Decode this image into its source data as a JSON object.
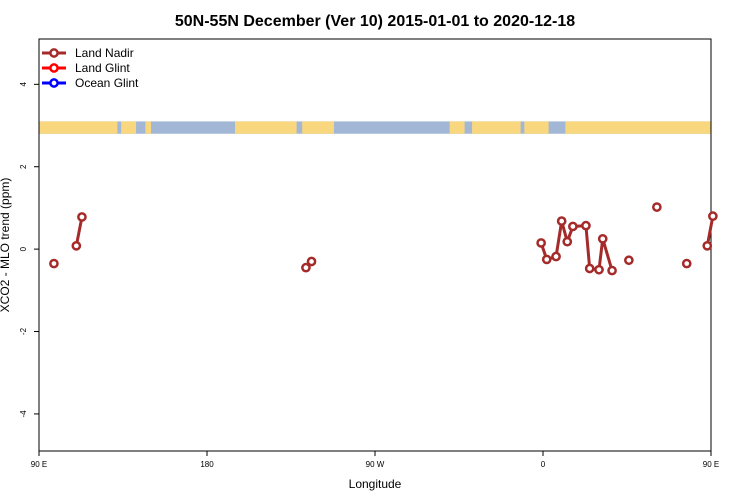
{
  "chart_data": {
    "type": "line",
    "title": "50N-55N December (Ver 10)   2015-01-01 to 2020-12-18",
    "xlabel": "Longitude",
    "ylabel": "XCO2 - MLO trend (ppm)",
    "xlim": [
      90,
      450
    ],
    "ylim": [
      -4.9,
      5.1
    ],
    "x_ticks": [
      {
        "value": 90,
        "label": "90 E"
      },
      {
        "value": 180,
        "label": "180"
      },
      {
        "value": 270,
        "label": "90 W"
      },
      {
        "value": 360,
        "label": "0"
      },
      {
        "value": 450,
        "label": "90 E"
      }
    ],
    "y_ticks": [
      {
        "value": -4,
        "label": "-4"
      },
      {
        "value": -2,
        "label": "-2"
      },
      {
        "value": 0,
        "label": "0"
      },
      {
        "value": 2,
        "label": "2"
      },
      {
        "value": 4,
        "label": "4"
      }
    ],
    "grid": false,
    "legend_position": "top-left",
    "legend": [
      {
        "label": "Land Nadir",
        "color": "#a52a2a"
      },
      {
        "label": "Land Glint",
        "color": "#ff0000"
      },
      {
        "label": "Ocean Glint",
        "color": "#0000ff"
      }
    ],
    "land_ocean_strip": {
      "land_color": "#f9d77e",
      "ocean_color": "#a2b6d6",
      "land_ranges": [
        [
          90,
          132
        ],
        [
          134,
          142
        ],
        [
          147,
          150
        ],
        [
          195,
          228
        ],
        [
          231,
          248
        ],
        [
          310,
          318
        ],
        [
          322,
          348
        ],
        [
          350,
          363
        ],
        [
          372,
          450
        ],
        [
          450,
          452
        ]
      ]
    },
    "series": [
      {
        "name": "Land Nadir",
        "color": "#a52a2a",
        "segments": [
          [
            {
              "x": 98,
              "y": -0.35
            }
          ],
          [
            {
              "x": 110,
              "y": 0.08
            },
            {
              "x": 113,
              "y": 0.78
            }
          ],
          [
            {
              "x": 233,
              "y": -0.45
            },
            {
              "x": 236,
              "y": -0.3
            }
          ],
          [
            {
              "x": 359,
              "y": 0.15
            },
            {
              "x": 362,
              "y": -0.25
            },
            {
              "x": 367,
              "y": -0.18
            },
            {
              "x": 370,
              "y": 0.68
            },
            {
              "x": 373,
              "y": 0.18
            },
            {
              "x": 376,
              "y": 0.55
            },
            {
              "x": 383,
              "y": 0.57
            },
            {
              "x": 385,
              "y": -0.47
            },
            {
              "x": 390,
              "y": -0.5
            },
            {
              "x": 392,
              "y": 0.25
            },
            {
              "x": 397,
              "y": -0.52
            }
          ],
          [
            {
              "x": 406,
              "y": -0.27
            }
          ],
          [
            {
              "x": 421,
              "y": 1.02
            }
          ],
          [
            {
              "x": 437,
              "y": -0.35
            }
          ],
          [
            {
              "x": 448,
              "y": 0.08
            },
            {
              "x": 451,
              "y": 0.8
            }
          ]
        ]
      }
    ]
  }
}
